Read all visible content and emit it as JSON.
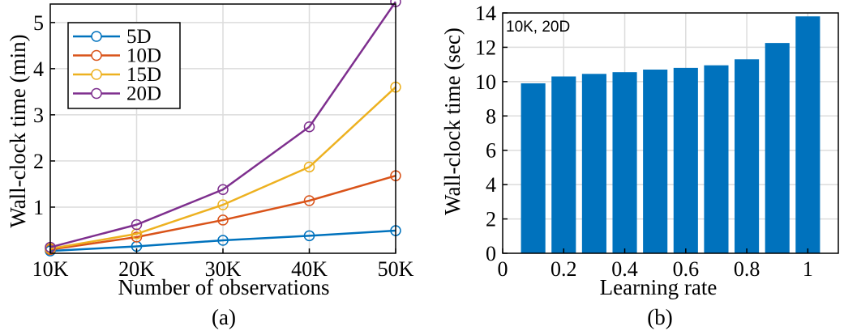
{
  "chart_data": [
    {
      "type": "line",
      "panel_label": "(a)",
      "title": "",
      "xlabel": "Number of observations",
      "ylabel": "Wall-clock time (min)",
      "x": [
        10,
        20,
        30,
        40,
        50
      ],
      "x_tick_labels": [
        "10K",
        "20K",
        "30K",
        "40K",
        "50K"
      ],
      "xlim": [
        10,
        50
      ],
      "ylim": [
        0,
        5.4
      ],
      "y_ticks": [
        1,
        2,
        3,
        4,
        5
      ],
      "grid": true,
      "legend_position": "top-left",
      "series": [
        {
          "name": "5D",
          "color": "#0072BD",
          "values": [
            0.05,
            0.15,
            0.28,
            0.38,
            0.49
          ]
        },
        {
          "name": "10D",
          "color": "#D95319",
          "values": [
            0.08,
            0.35,
            0.72,
            1.14,
            1.68
          ]
        },
        {
          "name": "15D",
          "color": "#EDB120",
          "values": [
            0.1,
            0.42,
            1.05,
            1.87,
            3.6
          ]
        },
        {
          "name": "20D",
          "color": "#7E2F8E",
          "values": [
            0.13,
            0.62,
            1.38,
            2.74,
            5.45
          ]
        }
      ]
    },
    {
      "type": "bar",
      "panel_label": "(b)",
      "title": "",
      "annotation": "10K, 20D",
      "xlabel": "Learning rate",
      "ylabel": "Wall-clock time (sec)",
      "categories": [
        0.1,
        0.2,
        0.3,
        0.4,
        0.5,
        0.6,
        0.7,
        0.8,
        0.9,
        1.0
      ],
      "values": [
        9.9,
        10.3,
        10.45,
        10.55,
        10.7,
        10.8,
        10.95,
        11.3,
        12.25,
        13.8
      ],
      "bar_color": "#0072BD",
      "xlim": [
        0,
        1.1
      ],
      "ylim": [
        0,
        14
      ],
      "x_ticks": [
        0,
        0.2,
        0.4,
        0.6,
        0.8,
        1
      ],
      "x_tick_labels": [
        "0",
        "0.2",
        "0.4",
        "0.6",
        "0.8",
        "1"
      ],
      "y_ticks": [
        0,
        2,
        4,
        6,
        8,
        10,
        12,
        14
      ],
      "grid": true
    }
  ]
}
